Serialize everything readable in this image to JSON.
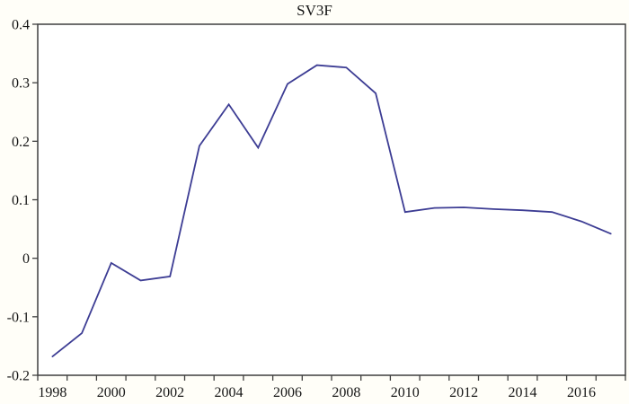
{
  "chart_data": {
    "type": "line",
    "title": "SV3F",
    "series": [
      {
        "name": "SV3F",
        "x": [
          1998,
          1999,
          2000,
          2001,
          2002,
          2003,
          2004,
          2005,
          2006,
          2007,
          2008,
          2009,
          2010,
          2011,
          2012,
          2013,
          2014,
          2015,
          2016,
          2017
        ],
        "values": [
          -0.168,
          -0.128,
          -0.008,
          -0.038,
          -0.031,
          0.192,
          0.263,
          0.189,
          0.298,
          0.33,
          0.326,
          0.282,
          0.079,
          0.086,
          0.087,
          0.084,
          0.082,
          0.079,
          0.063,
          0.042
        ]
      }
    ],
    "x_axis": {
      "start_year": 1998,
      "end_year": 2017,
      "minor_tick_every_years": 1,
      "tick_label_years": [
        1998,
        2000,
        2002,
        2004,
        2006,
        2008,
        2010,
        2012,
        2014,
        2016
      ],
      "tick_labels": [
        "1998",
        "2000",
        "2002",
        "2004",
        "2006",
        "2008",
        "2010",
        "2012",
        "2014",
        "2016"
      ]
    },
    "y_axis": {
      "range": [
        -0.2,
        0.4
      ],
      "tick_values": [
        0.4,
        0.3,
        0.2,
        0.1,
        0,
        -0.1,
        -0.2
      ],
      "tick_labels": [
        "0.4",
        "0.3",
        "0.2",
        "0.1",
        "0",
        "-0.1",
        "-0.2"
      ]
    },
    "grid": false,
    "legend": "none",
    "colors": {
      "line": "#3d3d94",
      "axis": "#3f3f3f",
      "text": "#161616",
      "plot_background": "#ffffff"
    }
  }
}
